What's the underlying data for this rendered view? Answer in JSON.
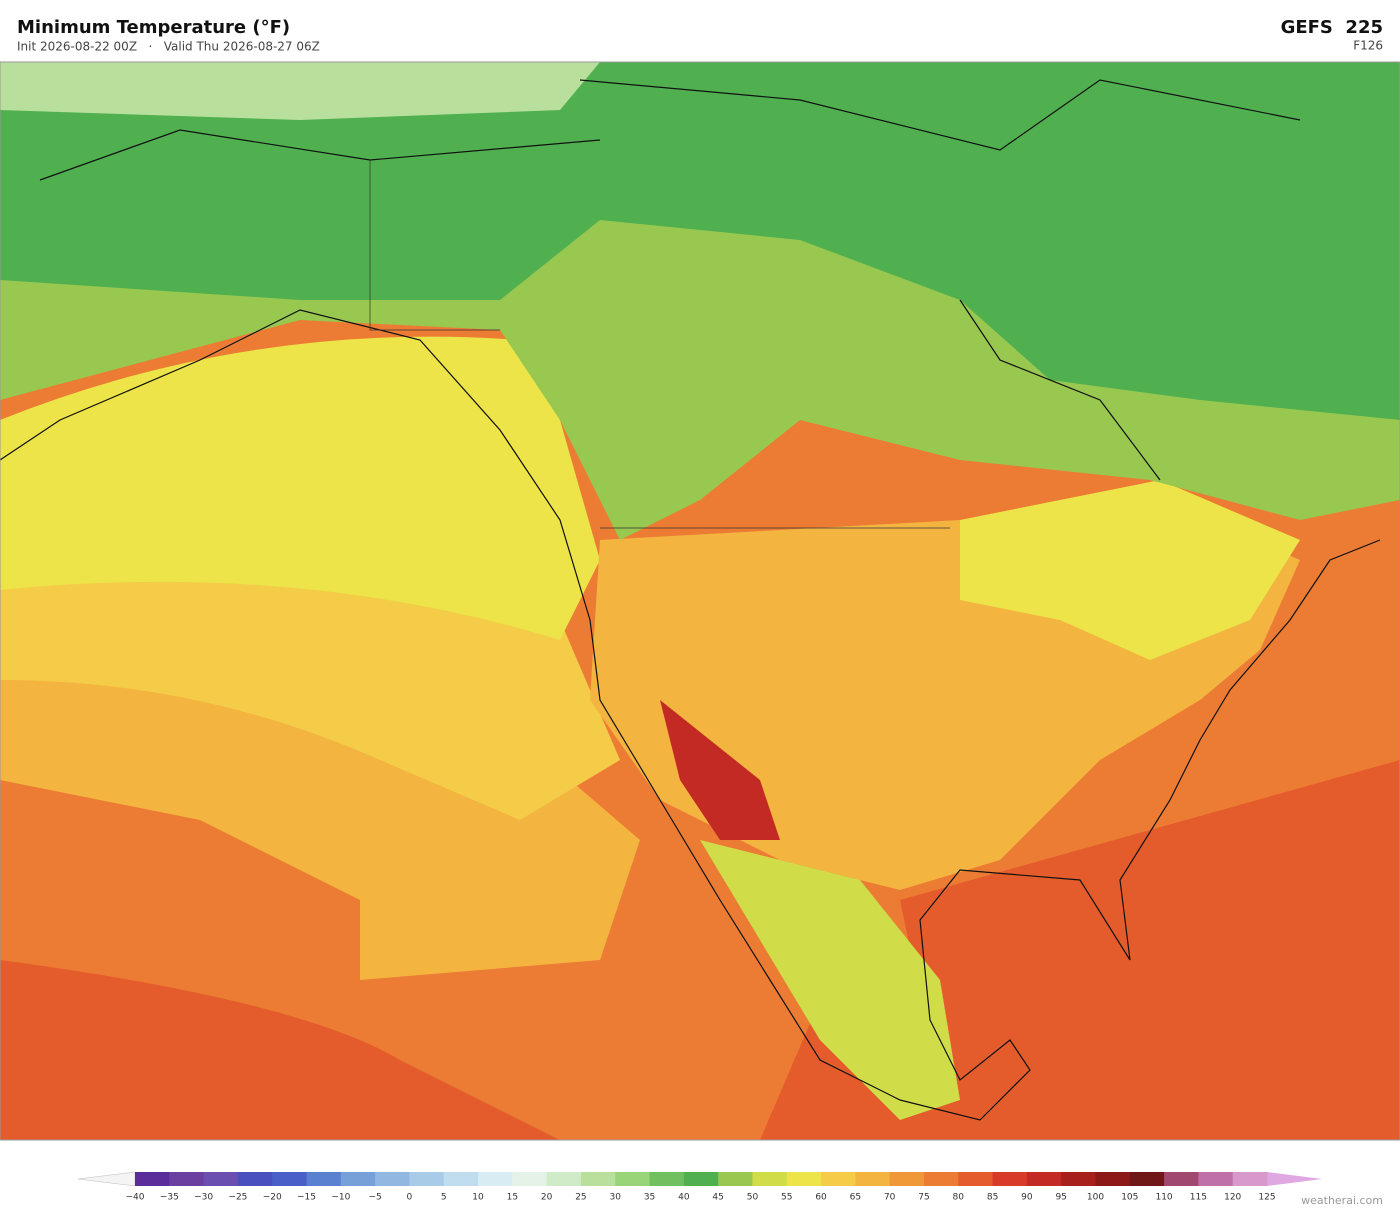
{
  "header": {
    "title": "Minimum Temperature  (°F)",
    "subtitle": "Init 2026-08-22 00Z   ·   Valid Thu 2026-08-27 06Z",
    "model": "GEFS  225",
    "forecast_hour": "F126"
  },
  "colorbar": {
    "labels": [
      "−40",
      "−35",
      "−30",
      "−25",
      "−20",
      "−15",
      "−10",
      "−5",
      "0",
      "5",
      "10",
      "15",
      "20",
      "25",
      "30",
      "35",
      "40",
      "45",
      "50",
      "55",
      "60",
      "65",
      "70",
      "75",
      "80",
      "85",
      "90",
      "95",
      "100",
      "105",
      "110",
      "115",
      "120",
      "125"
    ],
    "colors": [
      "#5b2d9a",
      "#6a3fa0",
      "#6a4fb0",
      "#4a4fc0",
      "#4a5fc8",
      "#5a80d0",
      "#78a0d8",
      "#90b8e0",
      "#a8cce8",
      "#c0dcef",
      "#d8ecf4",
      "#e4f2e8",
      "#d0ebc8",
      "#b8e09c",
      "#98d478",
      "#70c060",
      "#50b050",
      "#98c850",
      "#d0dc48",
      "#ece448",
      "#f4cc48",
      "#f4b440",
      "#f09838",
      "#ec7c34",
      "#e45c2c",
      "#d83c28",
      "#c42a24",
      "#a8201c",
      "#8c1818",
      "#701818",
      "#a04870",
      "#c070a8",
      "#d898cc"
    ],
    "under_color": "#f4f4f4",
    "over_color": "#e0a8e0"
  },
  "footer": {
    "credit": "weatherai.com"
  }
}
